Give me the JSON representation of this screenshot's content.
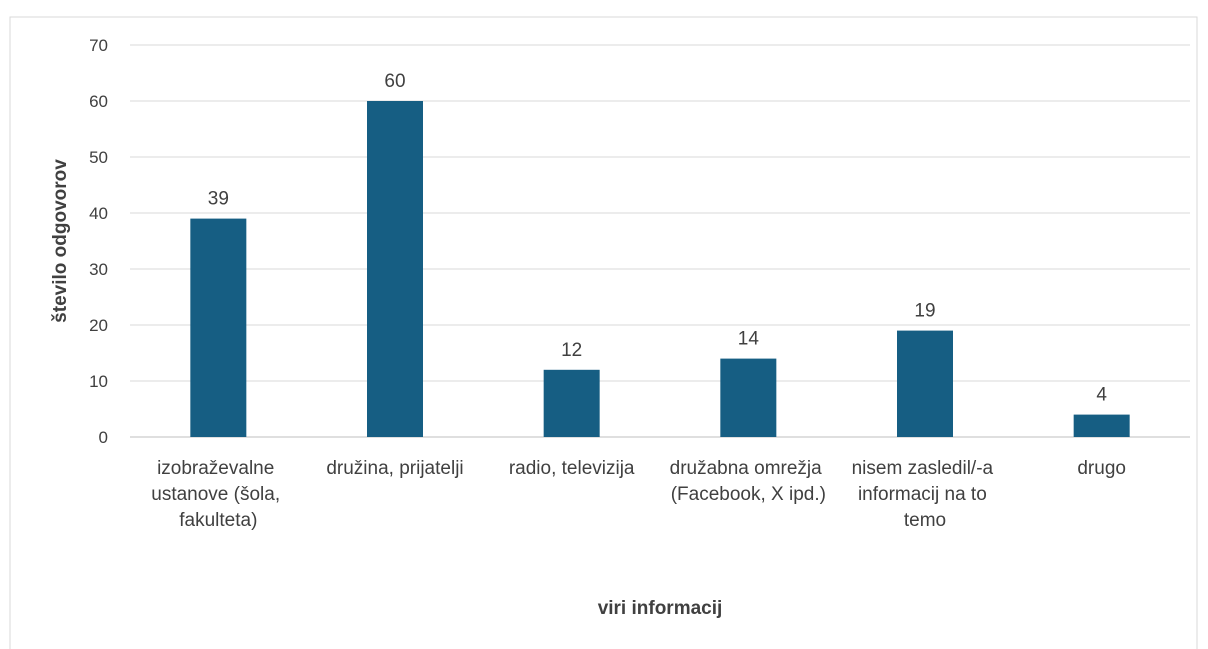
{
  "chart_data": {
    "type": "bar",
    "categories": [
      "izobraževalne ustanove (šola, fakulteta)",
      "družina, prijatelji",
      "radio, televizija",
      "družabna omrežja (Facebook, X ipd.)",
      "nisem zasledil/-a informacij na to temo",
      "drugo"
    ],
    "values": [
      39,
      60,
      12,
      14,
      19,
      4
    ],
    "color": "#165e83",
    "xlabel": "viri informacij",
    "ylabel": "število odgovorov",
    "ylim": [
      0,
      70
    ],
    "yticks": [
      0,
      10,
      20,
      30,
      40,
      50,
      60,
      70
    ],
    "grid": true,
    "data_labels": true
  }
}
